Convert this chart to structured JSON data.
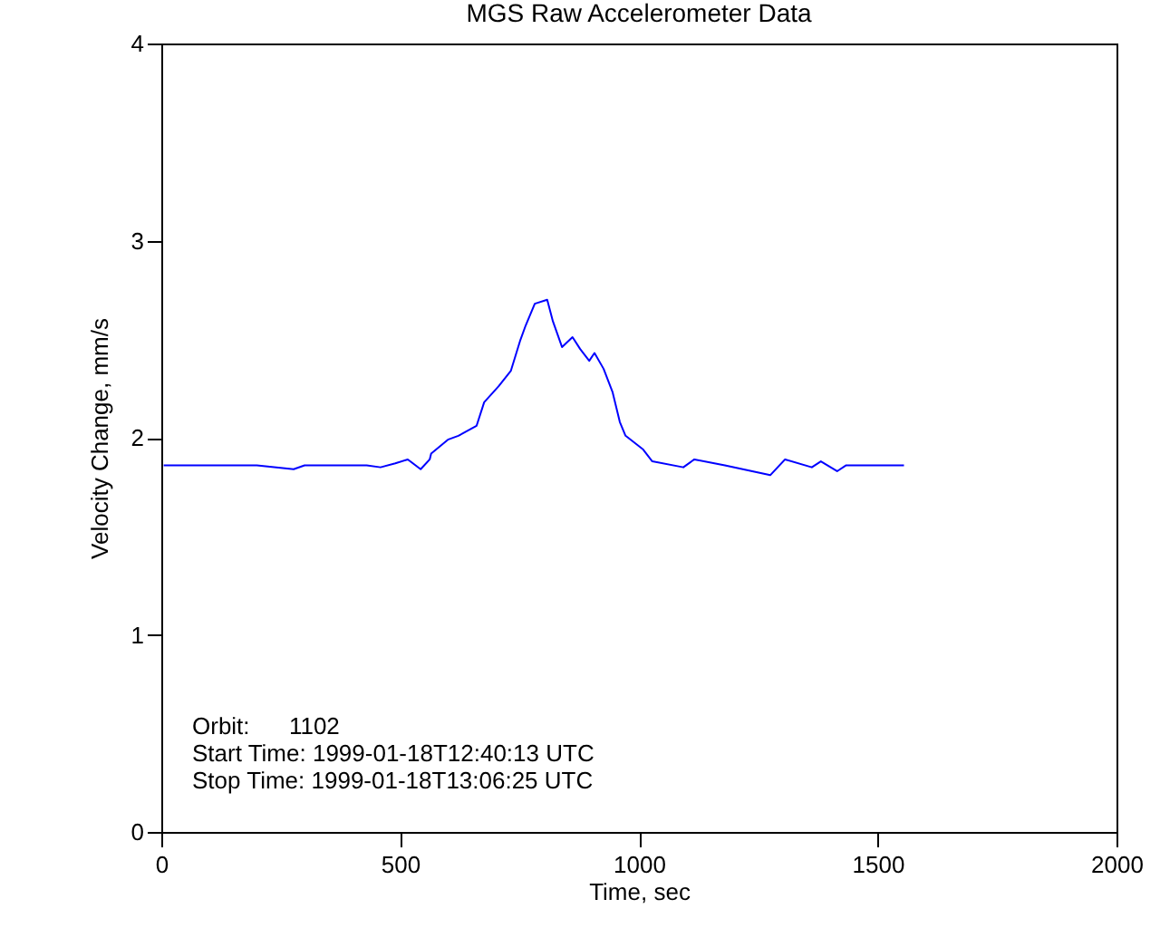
{
  "chart_data": {
    "type": "line",
    "title": "MGS Raw Accelerometer Data",
    "xlabel": "Time, sec",
    "ylabel": "Velocity Change, mm/s",
    "x": [
      5,
      60,
      120,
      200,
      277,
      300,
      380,
      430,
      459,
      490,
      516,
      543,
      562,
      565,
      600,
      622,
      660,
      676,
      706,
      732,
      751,
      763,
      782,
      808,
      820,
      839,
      861,
      877,
      896,
      907,
      926,
      945,
      960,
      972,
      1009,
      1028,
      1093,
      1116,
      1180,
      1275,
      1306,
      1362,
      1381,
      1415,
      1434,
      1500,
      1555
    ],
    "series": [
      {
        "color": "#0000ff",
        "values": [
          1.86,
          1.86,
          1.86,
          1.86,
          1.84,
          1.86,
          1.86,
          1.86,
          1.85,
          1.87,
          1.89,
          1.84,
          1.89,
          1.92,
          1.99,
          2.01,
          2.06,
          2.18,
          2.26,
          2.34,
          2.49,
          2.57,
          2.68,
          2.7,
          2.59,
          2.46,
          2.51,
          2.45,
          2.39,
          2.43,
          2.35,
          2.23,
          2.08,
          2.01,
          1.94,
          1.88,
          1.85,
          1.89,
          1.86,
          1.81,
          1.89,
          1.85,
          1.88,
          1.83,
          1.86,
          1.86,
          1.86
        ]
      }
    ],
    "xlim": [
      0,
      2000
    ],
    "ylim": [
      0,
      4
    ],
    "xticks": [
      0,
      500,
      1000,
      1500,
      2000
    ],
    "yticks": [
      0,
      1,
      2,
      3,
      4
    ],
    "annotations": [
      "Orbit:      1102",
      "Start Time: 1999-01-18T12:40:13 UTC",
      "Stop Time: 1999-01-18T13:06:25 UTC"
    ]
  }
}
